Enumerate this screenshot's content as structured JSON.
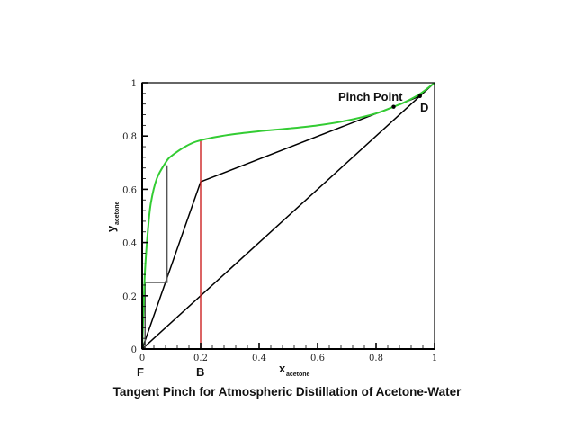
{
  "chart_data": {
    "type": "line",
    "title": "Tangent Pinch for Atmospheric Distillation of Acetone-Water",
    "xlabel": "x",
    "xlabel_sub": "acetone",
    "ylabel": "y",
    "ylabel_sub": "acetone",
    "xlim": [
      0,
      1
    ],
    "ylim": [
      0,
      1
    ],
    "grid": false,
    "x_ticks": [
      "0",
      "0.2",
      "0.4",
      "0.6",
      "0.8",
      "1"
    ],
    "y_ticks": [
      "0",
      "0.2",
      "0.4",
      "0.6",
      "0.8",
      "1"
    ],
    "series": [
      {
        "name": "Equilibrium curve",
        "color": "#33cc33",
        "x": [
          0,
          0.005,
          0.01,
          0.02,
          0.03,
          0.05,
          0.08,
          0.1,
          0.15,
          0.2,
          0.3,
          0.4,
          0.5,
          0.6,
          0.7,
          0.8,
          0.86,
          0.9,
          0.95,
          1.0
        ],
        "y": [
          0,
          0.16,
          0.3,
          0.45,
          0.55,
          0.64,
          0.7,
          0.725,
          0.762,
          0.784,
          0.805,
          0.818,
          0.828,
          0.84,
          0.858,
          0.885,
          0.91,
          0.928,
          0.958,
          1.0
        ]
      },
      {
        "name": "45-degree line",
        "color": "#000000",
        "x": [
          0,
          1
        ],
        "y": [
          0,
          1
        ]
      },
      {
        "name": "Rectifying operating line",
        "color": "#000000",
        "x": [
          0.2,
          0.86,
          0.95
        ],
        "y": [
          0.628,
          0.91,
          0.95
        ]
      },
      {
        "name": "Stripping operating line",
        "color": "#000000",
        "x": [
          0,
          0.2
        ],
        "y": [
          0,
          0.628
        ]
      },
      {
        "name": "Feed line",
        "color": "#cc2222",
        "x": [
          0.2,
          0.2
        ],
        "y": [
          0,
          0.784
        ]
      },
      {
        "name": "Stages",
        "color": "#555555",
        "x": [
          0.085,
          0.085,
          0.01,
          0.01
        ],
        "y": [
          0.69,
          0.25,
          0.25,
          0
        ]
      }
    ],
    "annotations": [
      {
        "text": "Pinch Point",
        "x": 0.86,
        "y": 0.91
      },
      {
        "text": "D",
        "x": 0.95,
        "y": 0.95
      },
      {
        "text": "B",
        "x": 0.0,
        "y": 0
      },
      {
        "text": "F",
        "x": 0.2,
        "y": 0
      }
    ]
  }
}
